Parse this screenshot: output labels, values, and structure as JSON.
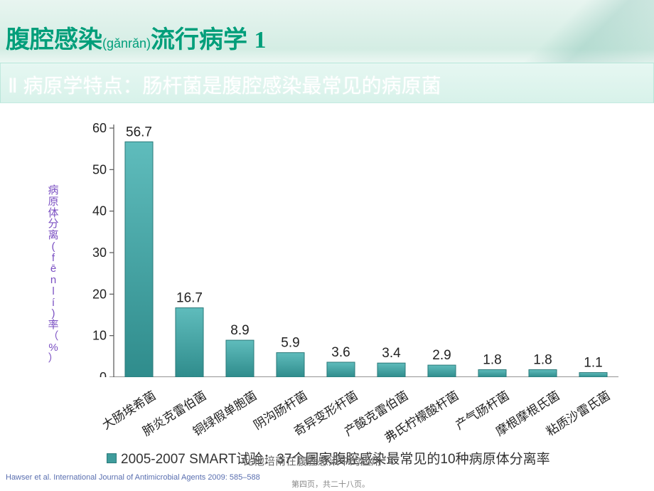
{
  "slide": {
    "title_main1": "腹腔感染",
    "title_pinyin": "(gǎnrǎn)",
    "title_main2": "流行病学 ",
    "title_number": "1",
    "subtitle": "Ⅱ 病原学特点：肠杆菌是腹腔感染最常见的病原菌",
    "overlay_text": "比他培南在腹腔感染中的应用",
    "citation": "Hawser et al. International Journal of Antimicrobial Agents 2009: 585–588",
    "page_indicator": "第四页，共二十八页。"
  },
  "ylabel": "病原体分离(fēnlí)率（%）",
  "chart": {
    "type": "bar",
    "title_fontsize": 34,
    "label_fontsize": 18,
    "categories": [
      "大肠埃希菌",
      "肺炎克雷伯菌",
      "铜绿假单胞菌",
      "阴沟肠杆菌",
      "奇异变形杆菌",
      "产酸克雷伯菌",
      "弗氏柠檬酸杆菌",
      "产气肠杆菌",
      "摩根摩根氏菌",
      "粘质沙雷氏菌"
    ],
    "values": [
      56.7,
      16.7,
      8.9,
      5.9,
      3.6,
      3.4,
      2.9,
      1.8,
      1.8,
      1.1
    ],
    "ylim": [
      0,
      60
    ],
    "ytick_step": 10,
    "bar_color": "#3f9c9c",
    "bar_gradient_top": "#5fbcbc",
    "bar_gradient_bottom": "#2f8c8c",
    "bar_border": "#2a7a7a",
    "background_color": "#ffffff",
    "axis_color": "#555555",
    "value_label_color": "#222222",
    "bar_width_ratio": 0.55,
    "legend_text": "2005-2007 SMART试验：37个国家腹腔感染最常见的10种病原体分离率"
  }
}
